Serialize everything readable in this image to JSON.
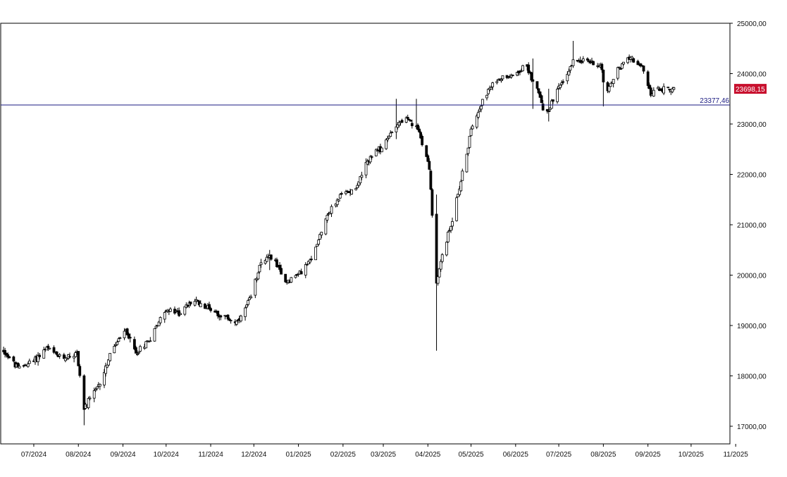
{
  "chart_data": {
    "type": "candlestick",
    "title": "",
    "xlabel": "",
    "ylabel": "",
    "ylim": [
      16650,
      25000
    ],
    "y_ticks": [
      "25000,00",
      "24000,00",
      "23000,00",
      "22000,00",
      "21000,00",
      "20000,00",
      "19000,00",
      "18000,00",
      "17000,00"
    ],
    "x_ticks": [
      "07/2024",
      "08/2024",
      "09/2024",
      "10/2024",
      "11/2024",
      "12/2024",
      "01/2025",
      "02/2025",
      "03/2025",
      "04/2025",
      "05/2025",
      "06/2025",
      "07/2025",
      "08/2025",
      "09/2025",
      "10/2025",
      "11/2025"
    ],
    "x_range": [
      "2024-06-08",
      "2025-10-28"
    ],
    "grid": false,
    "reference_line": {
      "value": 23377.46,
      "label": "23377,46",
      "color": "#1a1a80"
    },
    "last_value": {
      "value": 23698.15,
      "label": "23698,15",
      "color": "#c8102e"
    },
    "candle_color": "#000000",
    "close_path": [
      [
        "2024-06-10",
        18500
      ],
      [
        "2024-06-20",
        18150
      ],
      [
        "2024-07-01",
        18300
      ],
      [
        "2024-07-10",
        18550
      ],
      [
        "2024-07-20",
        18350
      ],
      [
        "2024-07-31",
        18450
      ],
      [
        "2024-08-05",
        17350
      ],
      [
        "2024-08-15",
        17800
      ],
      [
        "2024-08-25",
        18550
      ],
      [
        "2024-09-03",
        18900
      ],
      [
        "2024-09-10",
        18450
      ],
      [
        "2024-09-20",
        18750
      ],
      [
        "2024-09-30",
        19300
      ],
      [
        "2024-10-10",
        19250
      ],
      [
        "2024-10-20",
        19500
      ],
      [
        "2024-10-31",
        19350
      ],
      [
        "2024-11-08",
        19200
      ],
      [
        "2024-11-20",
        19050
      ],
      [
        "2024-11-29",
        19550
      ],
      [
        "2024-12-06",
        20300
      ],
      [
        "2024-12-15",
        20350
      ],
      [
        "2024-12-22",
        19850
      ],
      [
        "2024-12-31",
        20000
      ],
      [
        "2025-01-10",
        20300
      ],
      [
        "2025-01-20",
        21150
      ],
      [
        "2025-01-31",
        21600
      ],
      [
        "2025-02-10",
        21750
      ],
      [
        "2025-02-20",
        22350
      ],
      [
        "2025-03-01",
        22550
      ],
      [
        "2025-03-10",
        23000
      ],
      [
        "2025-03-17",
        23100
      ],
      [
        "2025-03-26",
        22850
      ],
      [
        "2025-04-02",
        22150
      ],
      [
        "2025-04-07",
        19800
      ],
      [
        "2025-04-11",
        20400
      ],
      [
        "2025-04-17",
        21000
      ],
      [
        "2025-04-25",
        22000
      ],
      [
        "2025-05-02",
        23000
      ],
      [
        "2025-05-10",
        23550
      ],
      [
        "2025-05-20",
        23900
      ],
      [
        "2025-05-31",
        24000
      ],
      [
        "2025-06-08",
        24150
      ],
      [
        "2025-06-16",
        23700
      ],
      [
        "2025-06-22",
        23150
      ],
      [
        "2025-06-28",
        23550
      ],
      [
        "2025-07-05",
        23900
      ],
      [
        "2025-07-12",
        24300
      ],
      [
        "2025-07-20",
        24250
      ],
      [
        "2025-07-31",
        24150
      ],
      [
        "2025-08-02",
        23500
      ],
      [
        "2025-08-10",
        24050
      ],
      [
        "2025-08-20",
        24350
      ],
      [
        "2025-08-28",
        24100
      ],
      [
        "2025-09-03",
        23600
      ],
      [
        "2025-09-10",
        23700
      ],
      [
        "2025-09-19",
        23698
      ]
    ],
    "wicks": [
      [
        "2024-08-05",
        17020,
        17600
      ],
      [
        "2025-04-07",
        18500,
        21600
      ],
      [
        "2025-03-10",
        22700,
        23500
      ],
      [
        "2025-03-24",
        22900,
        23500
      ],
      [
        "2025-06-13",
        23300,
        24300
      ],
      [
        "2025-08-01",
        23350,
        24000
      ],
      [
        "2025-06-24",
        23050,
        23700
      ],
      [
        "2025-07-11",
        24300,
        24650
      ],
      [
        "2024-12-12",
        20100,
        20500
      ]
    ]
  }
}
